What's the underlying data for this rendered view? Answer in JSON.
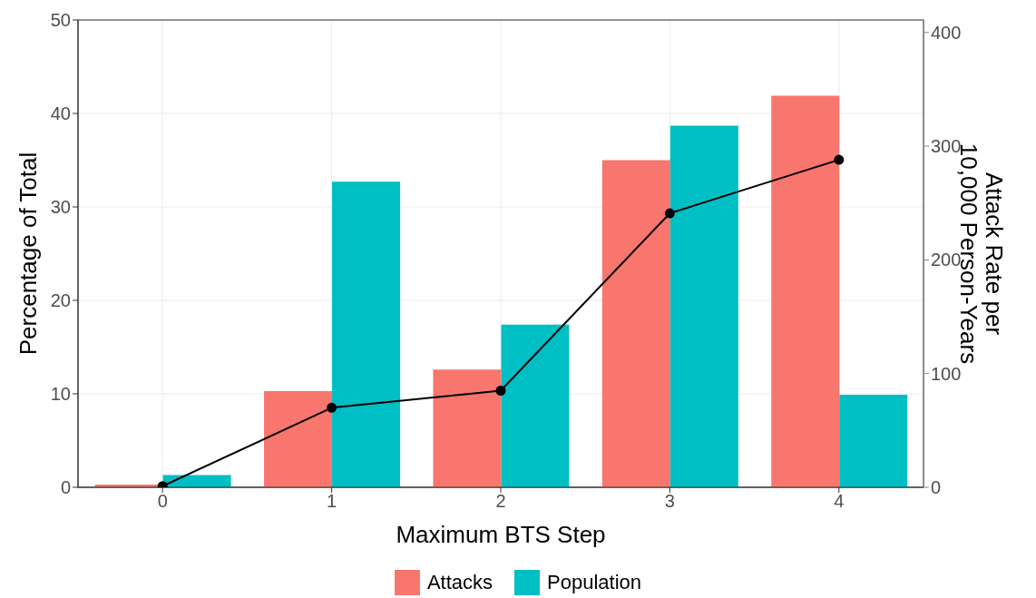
{
  "chart_data": {
    "type": "bar",
    "xlabel": "Maximum BTS Step",
    "ylabel": "Percentage of Total",
    "y2label": "Attack Rate per\n10,000 Person-Years",
    "categories": [
      "0",
      "1",
      "2",
      "3",
      "4"
    ],
    "series": [
      {
        "name": "Attacks",
        "color": "#f8766d",
        "values": [
          0.3,
          10.3,
          12.6,
          35.0,
          41.9
        ]
      },
      {
        "name": "Population",
        "color": "#00bfc4",
        "values": [
          1.3,
          32.7,
          17.4,
          38.7,
          9.9
        ]
      },
      {
        "type": "line",
        "axis": "y2",
        "color": "#000000",
        "values": [
          1,
          70,
          85,
          241,
          288
        ]
      }
    ],
    "ylim": [
      0,
      50
    ],
    "yticks": [
      0,
      10,
      20,
      30,
      40,
      50
    ],
    "y2lim": [
      0,
      411
    ],
    "y2ticks": [
      0,
      100,
      200,
      300,
      400
    ],
    "grid": true,
    "legend": "bottom",
    "marker": "circle",
    "line_style": "solid"
  }
}
